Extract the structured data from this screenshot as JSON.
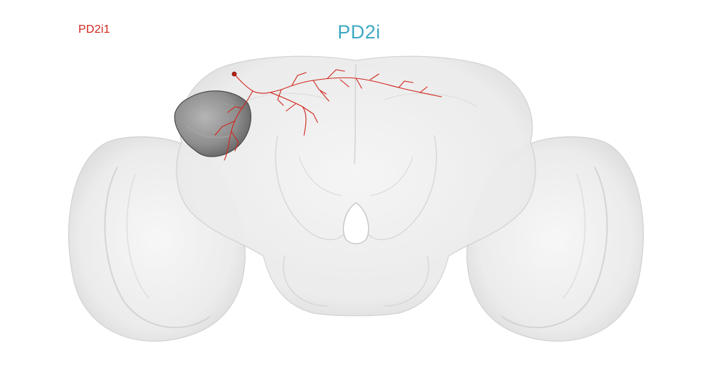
{
  "labels": {
    "neuron_name": "PD2i1",
    "cell_type": "PD2i"
  },
  "colors": {
    "neuron": "#d0261c",
    "cell_type_label": "#3ea9c3",
    "brain_mesh": "#d9d9d9",
    "neuropil_highlight": "#6e6e6e"
  }
}
